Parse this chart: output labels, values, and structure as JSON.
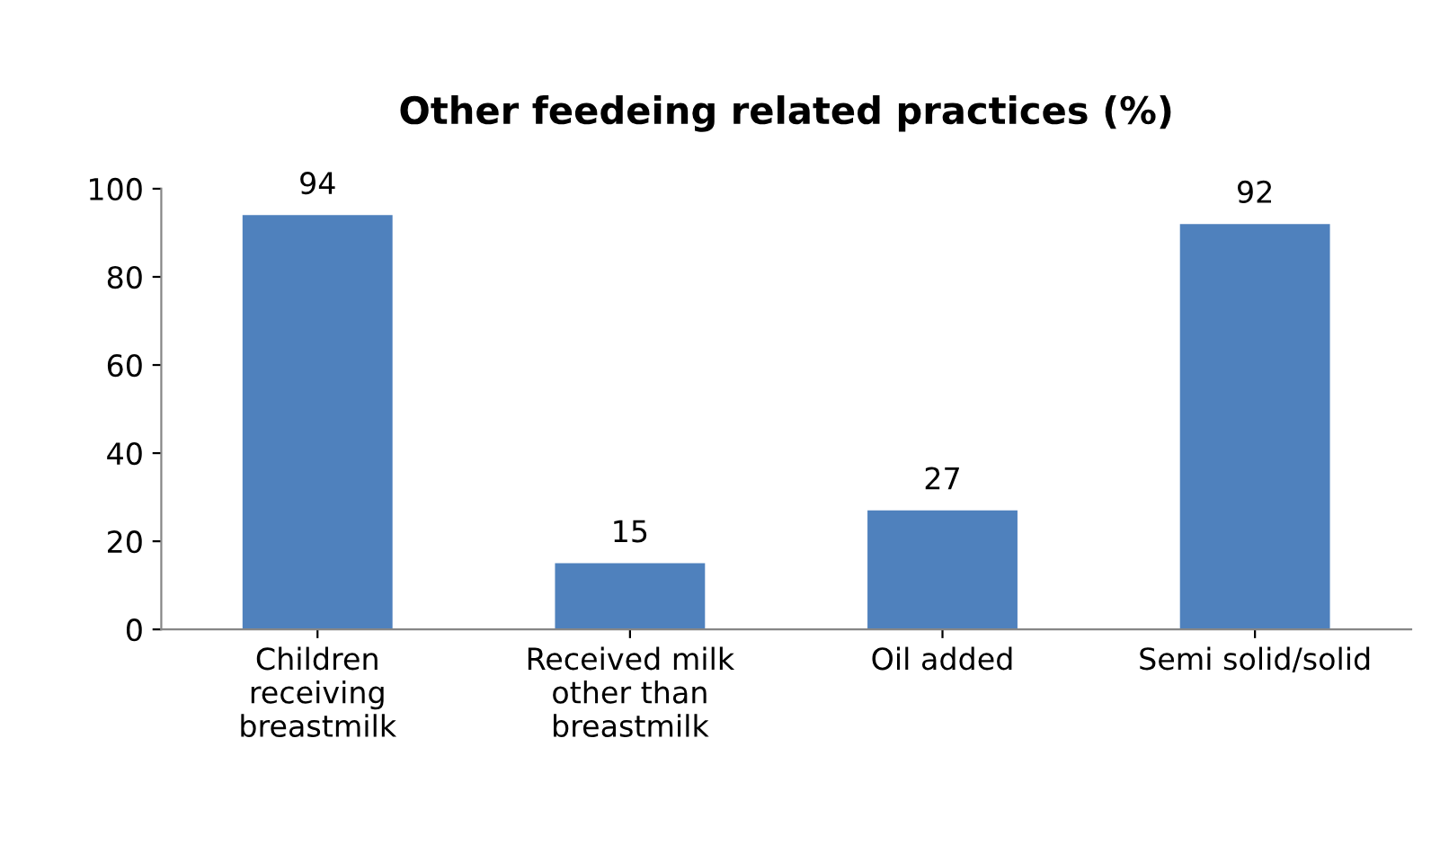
{
  "chart_data": {
    "type": "bar",
    "title": "Other feedeing related practices (%)",
    "categories": [
      "Children\nreceiving\nbreastmilk",
      "Received milk\nother than\nbreastmilk",
      "Oil added",
      "Semi solid/solid"
    ],
    "values": [
      94,
      15,
      27,
      92
    ],
    "color": "#4f81bd",
    "ylim": [
      0,
      100
    ],
    "yticks": [
      0,
      20,
      40,
      60,
      80,
      100
    ],
    "grid": false,
    "data_labels": true
  }
}
